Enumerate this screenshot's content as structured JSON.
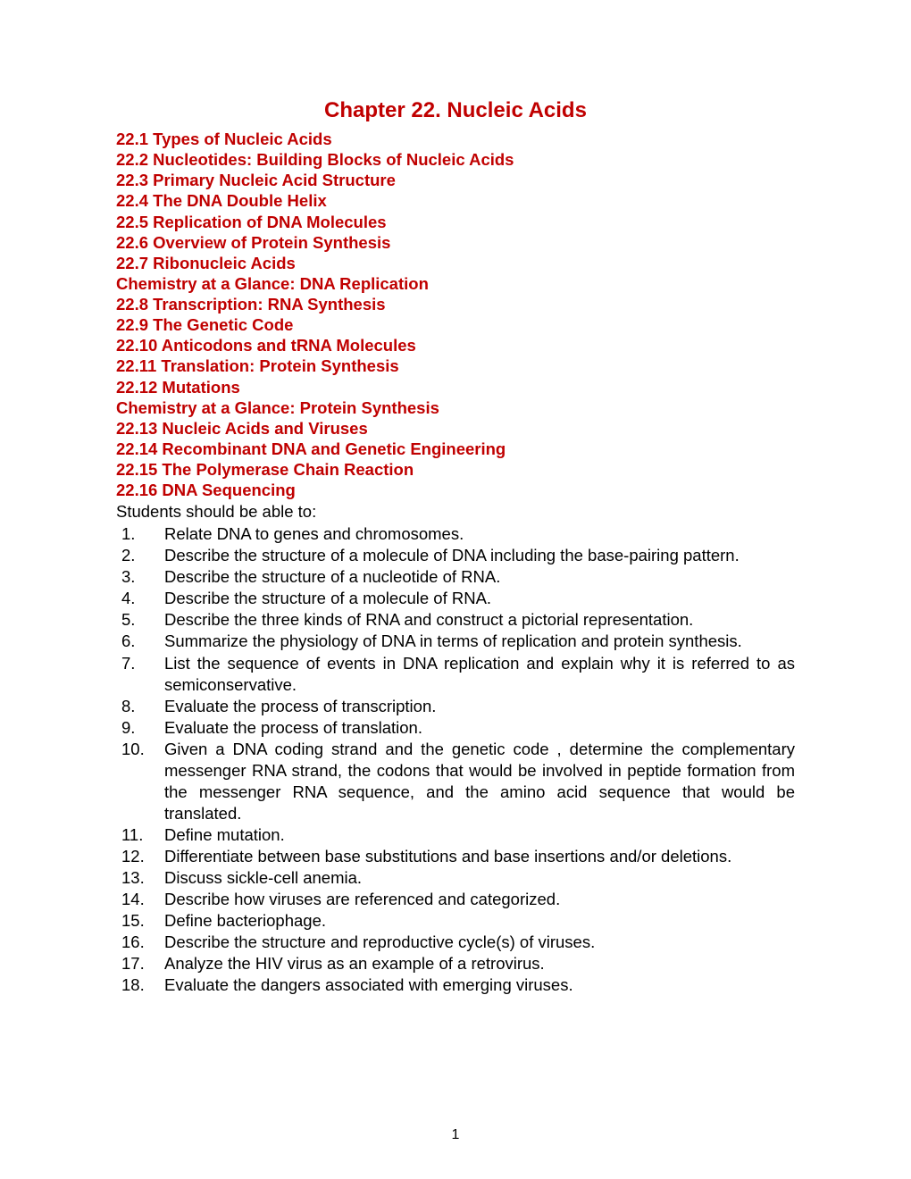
{
  "colors": {
    "heading": "#c00000",
    "body_text": "#000000",
    "background": "#ffffff"
  },
  "typography": {
    "title_fontsize": 24,
    "section_fontsize": 18.5,
    "body_fontsize": 18.5,
    "font_family": "Verdana"
  },
  "chapter_title": "Chapter 22. Nucleic Acids",
  "sections": [
    "22.1 Types of Nucleic Acids",
    "22.2 Nucleotides: Building Blocks of Nucleic Acids",
    "22.3 Primary Nucleic Acid Structure",
    "22.4 The DNA Double Helix",
    "22.5 Replication of DNA Molecules",
    "22.6 Overview of Protein Synthesis",
    "22.7 Ribonucleic Acids",
    "Chemistry at a Glance: DNA Replication",
    "22.8 Transcription: RNA Synthesis",
    "22.9 The Genetic Code",
    "22.10 Anticodons and tRNA Molecules",
    "22.11 Translation: Protein Synthesis",
    "22.12 Mutations",
    "Chemistry at a Glance: Protein Synthesis",
    "22.13 Nucleic Acids and Viruses",
    "22.14 Recombinant DNA and Genetic Engineering",
    "22.15 The Polymerase Chain Reaction",
    "22.16 DNA Sequencing"
  ],
  "intro_text": "Students should be able to:",
  "objectives": [
    {
      "num": "1.",
      "text": "Relate DNA to genes and chromosomes."
    },
    {
      "num": "2.",
      "text": "Describe the structure of a molecule of DNA including the base-pairing pattern."
    },
    {
      "num": "3.",
      "text": "Describe the structure of a nucleotide of RNA."
    },
    {
      "num": "4.",
      "text": "Describe the structure of a molecule of RNA."
    },
    {
      "num": "5.",
      "text": "Describe the three kinds of RNA and construct a pictorial representation."
    },
    {
      "num": "6.",
      "text": "Summarize the physiology of DNA in terms of replication and protein synthesis."
    },
    {
      "num": "7.",
      "text": "List the sequence of events in DNA replication and explain why it is referred to as semiconservative."
    },
    {
      "num": "8.",
      "text": "Evaluate the process of transcription."
    },
    {
      "num": "9.",
      "text": "Evaluate the process of translation."
    },
    {
      "num": "10.",
      "text": "Given a DNA coding strand and the genetic code , determine the complementary messenger RNA strand, the codons that would be involved in peptide formation from the messenger RNA sequence, and the amino acid sequence that would be translated."
    },
    {
      "num": "11.",
      "text": "Define mutation."
    },
    {
      "num": "12.",
      "text": "Differentiate between base substitutions and base insertions and/or deletions."
    },
    {
      "num": "13.",
      "text": "Discuss sickle-cell anemia."
    },
    {
      "num": "14.",
      "text": "Describe how viruses are referenced and categorized."
    },
    {
      "num": "15.",
      "text": "Define bacteriophage."
    },
    {
      "num": "16.",
      "text": "Describe the structure and reproductive cycle(s) of viruses."
    },
    {
      "num": "17.",
      "text": "Analyze the HIV virus as an example of a retrovirus."
    },
    {
      "num": "18.",
      "text": "Evaluate the dangers associated with emerging viruses."
    }
  ],
  "page_number": "1"
}
